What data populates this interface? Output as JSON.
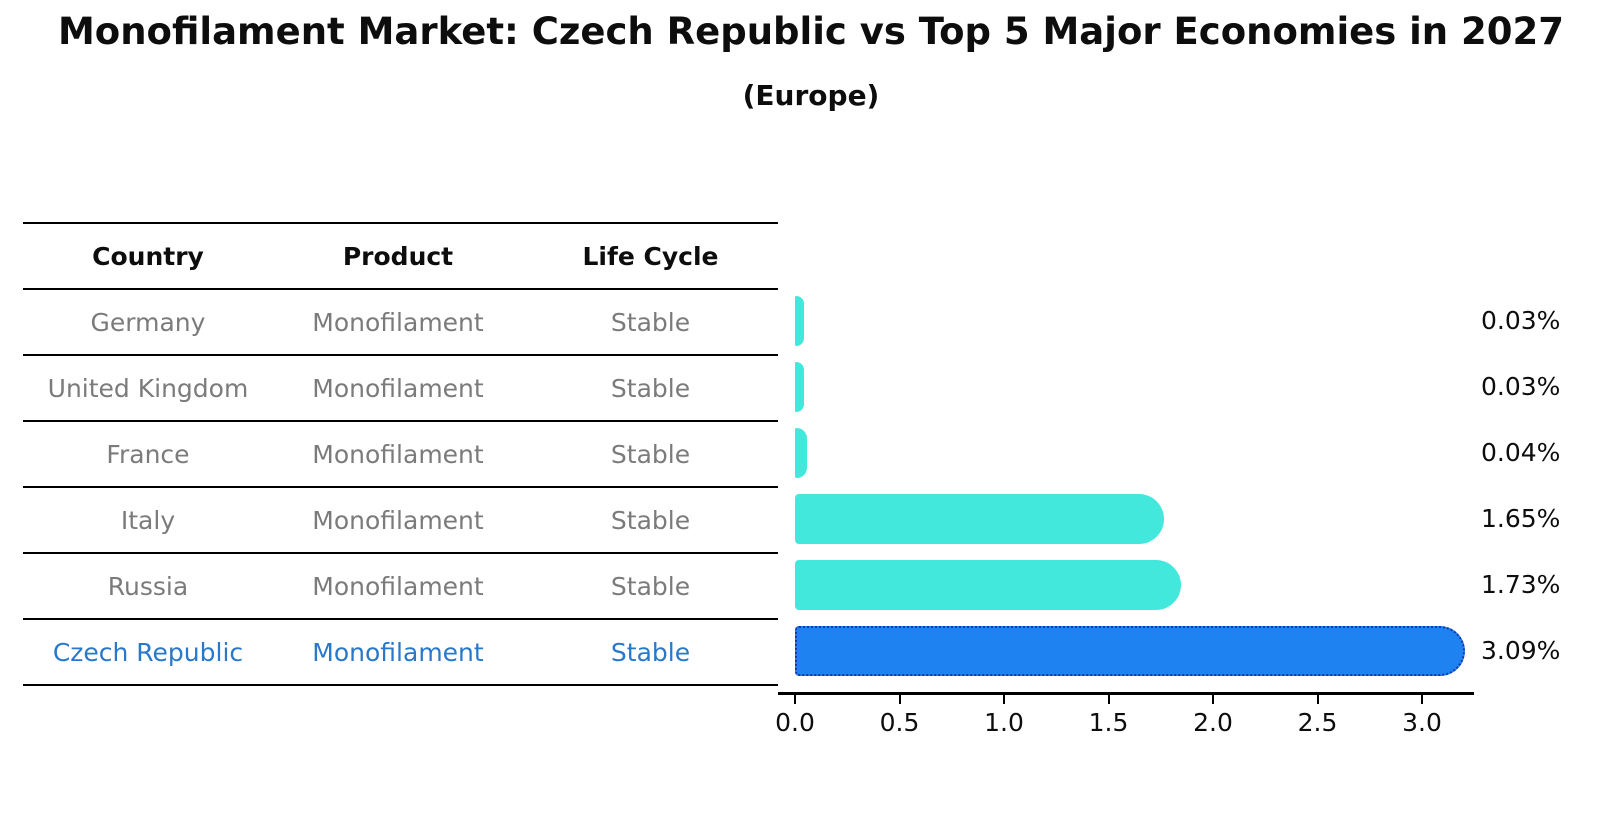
{
  "header": {
    "title": "Monofilament Market: Czech Republic vs Top 5 Major Economies in 2027",
    "subtitle": "(Europe)"
  },
  "table": {
    "columns": [
      "Country",
      "Product",
      "Life Cycle"
    ],
    "rows": [
      {
        "country": "Germany",
        "product": "Monofilament",
        "life_cycle": "Stable"
      },
      {
        "country": "United Kingdom",
        "product": "Monofilament",
        "life_cycle": "Stable"
      },
      {
        "country": "France",
        "product": "Monofilament",
        "life_cycle": "Stable"
      },
      {
        "country": "Italy",
        "product": "Monofilament",
        "life_cycle": "Stable"
      },
      {
        "country": "Russia",
        "product": "Monofilament",
        "life_cycle": "Stable"
      },
      {
        "country": "Czech Republic",
        "product": "Monofilament",
        "life_cycle": "Stable"
      }
    ]
  },
  "chart_data": {
    "type": "bar",
    "orientation": "horizontal",
    "title": "Monofilament Market: Czech Republic vs Top 5 Major Economies in 2027 (Europe)",
    "categories": [
      "Germany",
      "United Kingdom",
      "France",
      "Italy",
      "Russia",
      "Czech Republic"
    ],
    "values": [
      0.03,
      0.03,
      0.04,
      1.65,
      1.73,
      3.09
    ],
    "value_labels": [
      "0.03%",
      "0.03%",
      "0.04%",
      "1.65%",
      "1.73%",
      "3.09%"
    ],
    "x_ticks": [
      "0.0",
      "0.5",
      "1.0",
      "1.5",
      "2.0",
      "2.5",
      "3.0"
    ],
    "xlim": [
      0,
      3.25
    ],
    "grid": false,
    "legend": "none",
    "highlight_index": 5,
    "bar_color": "#43e8dc",
    "highlight_bar_color": "#1e82f0",
    "highlight_border_color": "#1238a8",
    "highlight_text_color": "#2878cb",
    "row_text_color": "#7b7b7b"
  }
}
